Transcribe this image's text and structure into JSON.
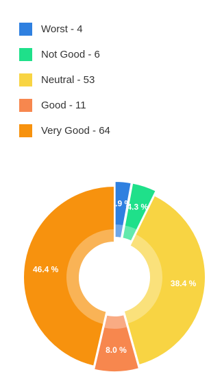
{
  "chart_data": {
    "type": "pie",
    "categories": [
      "Worst",
      "Not Good",
      "Neutral",
      "Good",
      "Very Good"
    ],
    "values": [
      4,
      6,
      53,
      11,
      64
    ],
    "legend_labels": [
      "Worst - 4",
      "Not Good - 6",
      "Neutral - 53",
      "Good - 11",
      "Very Good - 64"
    ],
    "slice_labels": [
      "2.9 %",
      "4.3 %",
      "38.4 %",
      "8.0 %",
      "46.4 %"
    ],
    "colors": [
      "#2f80e0",
      "#1fe08a",
      "#f8d443",
      "#f7874e",
      "#f7920e"
    ],
    "legend_position": "top-left"
  }
}
